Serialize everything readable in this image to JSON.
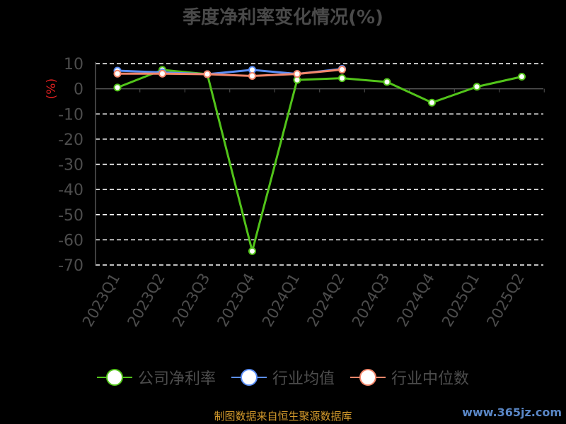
{
  "chart_data": {
    "type": "line",
    "title": "季度净利率变化情况(%)",
    "ylabel": "(%)",
    "categories": [
      "2023Q1",
      "2023Q2",
      "2023Q3",
      "2023Q4",
      "2024Q1",
      "2024Q2",
      "2024Q3",
      "2024Q4",
      "2025Q1",
      "2025Q2"
    ],
    "ylim": [
      -70,
      10
    ],
    "yticks": [
      10,
      0,
      -10,
      -20,
      -30,
      -40,
      -50,
      -60,
      -70
    ],
    "grid": true,
    "legend_position": "bottom",
    "series": [
      {
        "name": "公司净利率",
        "color": "#52c41a",
        "values": [
          0.5,
          7.5,
          5.8,
          -64.5,
          3.5,
          4.2,
          2.7,
          -5.5,
          0.8,
          4.8
        ]
      },
      {
        "name": "行业均值",
        "color": "#5b8ff9",
        "values": [
          7.2,
          6.5,
          5.8,
          7.5,
          5.9,
          7.9,
          null,
          null,
          null,
          null
        ]
      },
      {
        "name": "行业中位数",
        "color": "#f4876b",
        "values": [
          6.0,
          6.0,
          5.8,
          5.1,
          5.9,
          7.6,
          null,
          null,
          null,
          null
        ]
      }
    ]
  },
  "footer": {
    "source": "制图数据来自恒生聚源数据库",
    "watermark": "www.365jz.com"
  }
}
